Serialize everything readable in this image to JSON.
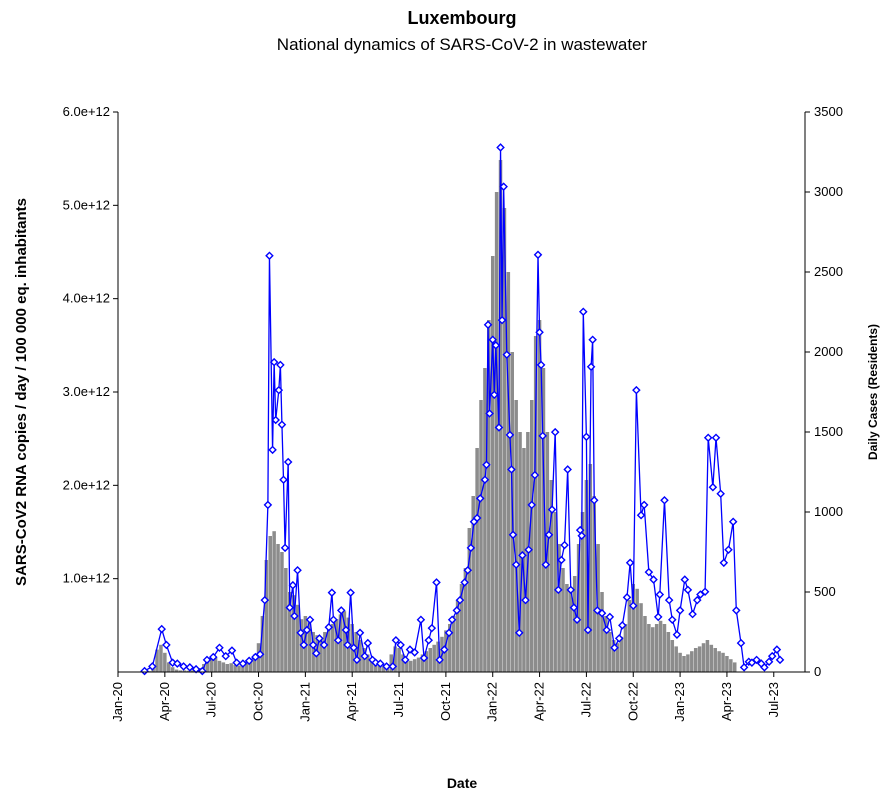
{
  "chart_data": {
    "type": "bar_line",
    "title": "Luxembourg",
    "subtitle": "National dynamics of SARS-CoV-2 in wastewater",
    "x_label": "Date",
    "y_label": "SARS-CoV2 RNA copies / day  / 100 000 eq. inhabitants",
    "y2_label": "Daily Cases (Residents)",
    "xlim": [
      0,
      44
    ],
    "xticks": [
      {
        "value": 0,
        "label": "Jan-20"
      },
      {
        "value": 3,
        "label": "Apr-20"
      },
      {
        "value": 6,
        "label": "Jul-20"
      },
      {
        "value": 9,
        "label": "Oct-20"
      },
      {
        "value": 12,
        "label": "Jan-21"
      },
      {
        "value": 15,
        "label": "Apr-21"
      },
      {
        "value": 18,
        "label": "Jul-21"
      },
      {
        "value": 21,
        "label": "Oct-21"
      },
      {
        "value": 24,
        "label": "Jan-22"
      },
      {
        "value": 27,
        "label": "Apr-22"
      },
      {
        "value": 30,
        "label": "Jul-22"
      },
      {
        "value": 33,
        "label": "Oct-22"
      },
      {
        "value": 36,
        "label": "Jan-23"
      },
      {
        "value": 39,
        "label": "Apr-23"
      },
      {
        "value": 42,
        "label": "Jul-23"
      }
    ],
    "ylim": [
      0,
      6000000000000.0
    ],
    "yticks": [
      {
        "value": 1000000000000.0,
        "label": "1.0e+12"
      },
      {
        "value": 2000000000000.0,
        "label": "2.0e+12"
      },
      {
        "value": 3000000000000.0,
        "label": "3.0e+12"
      },
      {
        "value": 4000000000000.0,
        "label": "4.0e+12"
      },
      {
        "value": 5000000000000.0,
        "label": "5.0e+12"
      },
      {
        "value": 6000000000000.0,
        "label": "6.0e+12"
      }
    ],
    "y2lim": [
      0,
      3500
    ],
    "y2ticks": [
      0,
      500,
      1000,
      1500,
      2000,
      2500,
      3000,
      3500
    ],
    "series": [
      {
        "type": "bar",
        "axis": "y2",
        "color": "#8c8c8c",
        "x": [
          2,
          2.25,
          2.5,
          2.75,
          3,
          3.25,
          3.5,
          3.75,
          4,
          4.25,
          4.5,
          4.75,
          5,
          5.25,
          5.5,
          5.75,
          6,
          6.25,
          6.5,
          6.75,
          7,
          7.25,
          7.5,
          7.75,
          8,
          8.25,
          8.5,
          8.75,
          9,
          9.25,
          9.5,
          9.75,
          10,
          10.25,
          10.5,
          10.75,
          11,
          11.25,
          11.5,
          11.75,
          12,
          12.25,
          12.5,
          12.75,
          13,
          13.25,
          13.5,
          13.75,
          14,
          14.25,
          14.5,
          14.75,
          15,
          15.25,
          15.5,
          15.75,
          16,
          16.25,
          16.5,
          16.75,
          17,
          17.25,
          17.5,
          17.75,
          18,
          18.25,
          18.5,
          18.75,
          19,
          19.25,
          19.5,
          19.75,
          20,
          20.25,
          20.5,
          20.75,
          21,
          21.25,
          21.5,
          21.75,
          22,
          22.25,
          22.5,
          22.75,
          23,
          23.25,
          23.5,
          23.75,
          24,
          24.25,
          24.5,
          24.75,
          25,
          25.25,
          25.5,
          25.75,
          26,
          26.25,
          26.5,
          26.75,
          27,
          27.25,
          27.5,
          27.75,
          28,
          28.25,
          28.5,
          28.75,
          29,
          29.25,
          29.5,
          29.75,
          30,
          30.25,
          30.5,
          30.75,
          31,
          31.25,
          31.5,
          31.75,
          32,
          32.25,
          32.5,
          32.75,
          33,
          33.25,
          33.5,
          33.75,
          34,
          34.25,
          34.5,
          34.75,
          35,
          35.25,
          35.5,
          35.75,
          36,
          36.25,
          36.5,
          36.75,
          37,
          37.25,
          37.5,
          37.75,
          38,
          38.25,
          38.5,
          38.75,
          39,
          39.25,
          39.5
        ],
        "values": [
          5,
          40,
          140,
          170,
          120,
          60,
          30,
          15,
          10,
          10,
          8,
          10,
          15,
          25,
          50,
          80,
          100,
          90,
          70,
          60,
          50,
          55,
          45,
          40,
          50,
          60,
          80,
          110,
          180,
          350,
          700,
          850,
          880,
          800,
          750,
          650,
          500,
          480,
          420,
          330,
          350,
          320,
          250,
          230,
          210,
          250,
          270,
          300,
          330,
          360,
          380,
          340,
          300,
          250,
          200,
          150,
          110,
          80,
          50,
          40,
          35,
          50,
          110,
          160,
          150,
          110,
          80,
          70,
          80,
          90,
          110,
          130,
          150,
          170,
          190,
          220,
          260,
          300,
          350,
          450,
          550,
          650,
          900,
          1100,
          1400,
          1700,
          1900,
          2200,
          2600,
          3000,
          3200,
          2900,
          2500,
          2000,
          1700,
          1500,
          1400,
          1500,
          1700,
          2100,
          2200,
          1900,
          1500,
          1200,
          1000,
          800,
          650,
          550,
          500,
          600,
          800,
          1000,
          1200,
          1300,
          1100,
          800,
          500,
          350,
          250,
          200,
          180,
          220,
          300,
          450,
          550,
          520,
          430,
          350,
          300,
          280,
          300,
          320,
          300,
          250,
          200,
          160,
          120,
          100,
          110,
          130,
          150,
          160,
          180,
          200,
          170,
          150,
          130,
          120,
          100,
          80,
          60
        ]
      },
      {
        "type": "line",
        "color": "#0000ff",
        "x": [
          1.7,
          2.2,
          2.8,
          3.1,
          3.5,
          3.8,
          4.2,
          4.6,
          5.0,
          5.4,
          5.7,
          6.1,
          6.5,
          6.9,
          7.3,
          7.6,
          8.0,
          8.4,
          8.8,
          9.1,
          9.4,
          9.6,
          9.7,
          9.9,
          10.0,
          10.1,
          10.3,
          10.4,
          10.5,
          10.6,
          10.7,
          10.9,
          11.0,
          11.2,
          11.3,
          11.5,
          11.7,
          11.9,
          12.1,
          12.3,
          12.5,
          12.7,
          12.9,
          13.2,
          13.5,
          13.7,
          13.8,
          14.1,
          14.3,
          14.6,
          14.7,
          14.9,
          15.1,
          15.3,
          15.5,
          15.8,
          16.0,
          16.3,
          16.5,
          16.8,
          17.2,
          17.6,
          17.8,
          18.1,
          18.4,
          18.7,
          19.0,
          19.4,
          19.6,
          19.9,
          20.1,
          20.4,
          20.6,
          20.9,
          21.2,
          21.4,
          21.7,
          21.9,
          22.2,
          22.4,
          22.6,
          22.8,
          23.0,
          23.2,
          23.5,
          23.6,
          23.7,
          23.8,
          24.0,
          24.1,
          24.2,
          24.4,
          24.5,
          24.6,
          24.7,
          24.9,
          25.1,
          25.2,
          25.3,
          25.5,
          25.7,
          25.9,
          26.1,
          26.3,
          26.5,
          26.7,
          26.9,
          27.0,
          27.1,
          27.2,
          27.4,
          27.6,
          27.8,
          28.0,
          28.2,
          28.4,
          28.6,
          28.8,
          29.0,
          29.2,
          29.4,
          29.6,
          29.7,
          29.8,
          30.0,
          30.1,
          30.3,
          30.4,
          30.5,
          30.7,
          31.0,
          31.3,
          31.5,
          31.8,
          32.1,
          32.3,
          32.6,
          32.8,
          33.0,
          33.2,
          33.5,
          33.7,
          34.0,
          34.3,
          34.6,
          34.7,
          35.0,
          35.3,
          35.5,
          35.8,
          36.0,
          36.3,
          36.5,
          36.8,
          37.1,
          37.3,
          37.6,
          37.8,
          38.1,
          38.3,
          38.6,
          38.8,
          39.1,
          39.4,
          39.6,
          39.9,
          40.1,
          40.4,
          40.6,
          40.9,
          41.2,
          41.4,
          41.7,
          41.9,
          42.2,
          42.4
        ],
        "values": [
          10000000000.0,
          60000000000.0,
          460000000000.0,
          290000000000.0,
          100000000000.0,
          90000000000.0,
          60000000000.0,
          50000000000.0,
          30000000000.0,
          10000000000.0,
          130000000000.0,
          160000000000.0,
          260000000000.0,
          170000000000.0,
          230000000000.0,
          100000000000.0,
          90000000000.0,
          120000000000.0,
          160000000000.0,
          190000000000.0,
          770000000000.0,
          1790000000000.0,
          4460000000000.0,
          2380000000000.0,
          3320000000000.0,
          2700000000000.0,
          3020000000000.0,
          3290000000000.0,
          2650000000000.0,
          2060000000000.0,
          1330000000000.0,
          2250000000000.0,
          690000000000.0,
          930000000000.0,
          600000000000.0,
          1090000000000.0,
          420000000000.0,
          290000000000.0,
          450000000000.0,
          560000000000.0,
          290000000000.0,
          200000000000.0,
          360000000000.0,
          290000000000.0,
          480000000000.0,
          850000000000.0,
          560000000000.0,
          340000000000.0,
          660000000000.0,
          450000000000.0,
          290000000000.0,
          850000000000.0,
          260000000000.0,
          130000000000.0,
          420000000000.0,
          170000000000.0,
          310000000000.0,
          130000000000.0,
          100000000000.0,
          90000000000.0,
          60000000000.0,
          60000000000.0,
          340000000000.0,
          290000000000.0,
          130000000000.0,
          240000000000.0,
          210000000000.0,
          560000000000.0,
          150000000000.0,
          340000000000.0,
          470000000000.0,
          960000000000.0,
          130000000000.0,
          240000000000.0,
          420000000000.0,
          560000000000.0,
          660000000000.0,
          770000000000.0,
          960000000000.0,
          1090000000000.0,
          1330000000000.0,
          1610000000000.0,
          1650000000000.0,
          1860000000000.0,
          2060000000000.0,
          2220000000000.0,
          3720000000000.0,
          2770000000000.0,
          3560000000000.0,
          2970000000000.0,
          3500000000000.0,
          2620000000000.0,
          5620000000000.0,
          3770000000000.0,
          5200000000000.0,
          3400000000000.0,
          2540000000000.0,
          2170000000000.0,
          1470000000000.0,
          1150000000000.0,
          420000000000.0,
          1250000000000.0,
          770000000000.0,
          1310000000000.0,
          1790000000000.0,
          2110000000000.0,
          4470000000000.0,
          3640000000000.0,
          3290000000000.0,
          2530000000000.0,
          1150000000000.0,
          1470000000000.0,
          1740000000000.0,
          2570000000000.0,
          880000000000.0,
          1200000000000.0,
          1360000000000.0,
          2170000000000.0,
          880000000000.0,
          690000000000.0,
          560000000000.0,
          1520000000000.0,
          1460000000000.0,
          3860000000000.0,
          2520000000000.0,
          450000000000.0,
          3270000000000.0,
          3560000000000.0,
          1840000000000.0,
          660000000000.0,
          630000000000.0,
          450000000000.0,
          590000000000.0,
          260000000000.0,
          360000000000.0,
          500000000000.0,
          800000000000.0,
          1170000000000.0,
          710000000000.0,
          3020000000000.0,
          1680000000000.0,
          1790000000000.0,
          1070000000000.0,
          990000000000.0,
          590000000000.0,
          830000000000.0,
          1840000000000.0,
          770000000000.0,
          560000000000.0,
          400000000000.0,
          660000000000.0,
          990000000000.0,
          880000000000.0,
          620000000000.0,
          770000000000.0,
          830000000000.0,
          860000000000.0,
          2510000000000.0,
          1980000000000.0,
          2510000000000.0,
          1910000000000.0,
          1170000000000.0,
          1310000000000.0,
          1610000000000.0,
          660000000000.0,
          310000000000.0,
          50000000000.0,
          110000000000.0,
          100000000000.0,
          130000000000.0,
          90000000000.0,
          50000000000.0,
          110000000000.0,
          170000000000.0,
          240000000000.0,
          130000000000.0
        ]
      }
    ]
  }
}
